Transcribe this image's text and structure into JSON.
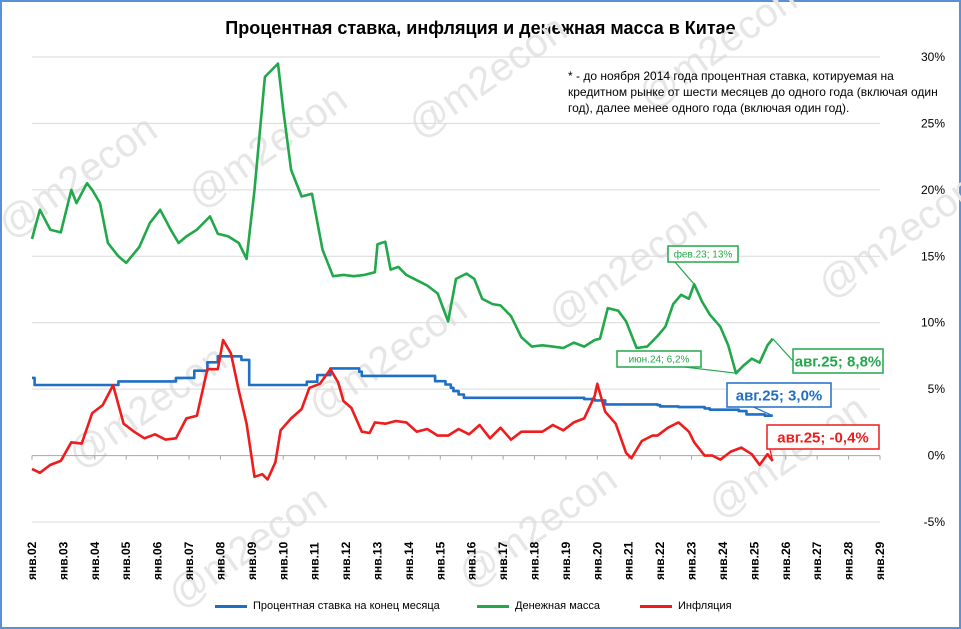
{
  "title": "Процентная ставка, инфляция и денежная масса в Китае",
  "note": "* - до ноября 2014 года процентная ставка, котируемая на кредитном рынке от шести месяцев до одного года (включая один год), далее менее одного года (включая один год).",
  "watermark": "@m2econ",
  "colors": {
    "rate": "#1f6fc5",
    "money": "#21a84a",
    "inflation": "#ee1c1c",
    "grid": "#d9d9d9"
  },
  "legend": {
    "rate": "Процентная ставка на конец месяца",
    "money": "Денежная масса",
    "inflation": "Инфляция"
  },
  "callouts": {
    "money_peak": "фев.23; 13%",
    "money_low": "июн.24; 6,2%",
    "money_last": "авг.25; 8,8%",
    "rate_last": "авг.25; 3,0%",
    "infl_last": "авг.25; -0,4%"
  },
  "chart_data": {
    "type": "line",
    "title": "Процентная ставка, инфляция и денежная масса в Китае",
    "xlabel": "",
    "ylabel": "",
    "ylim": [
      -5,
      30
    ],
    "y_ticks": [
      "30%",
      "25%",
      "20%",
      "15%",
      "10%",
      "5%",
      "0%",
      "-5%"
    ],
    "x_ticks": [
      "янв.02",
      "янв.03",
      "янв.04",
      "янв.05",
      "янв.06",
      "янв.07",
      "янв.08",
      "янв.09",
      "янв.10",
      "янв.11",
      "янв.12",
      "янв.13",
      "янв.14",
      "янв.15",
      "янв.16",
      "янв.17",
      "янв.18",
      "янв.19",
      "янв.20",
      "янв.21",
      "янв.22",
      "янв.23",
      "янв.24",
      "янв.25",
      "янв.26",
      "янв.27",
      "янв.28",
      "янв.29"
    ],
    "x_range": [
      "2002-01",
      "2029-01"
    ],
    "grid": true,
    "legend_position": "bottom",
    "series": [
      {
        "name": "Процентная ставка на конец месяца",
        "key": "rate",
        "x": [
          "2002-01",
          "2002-02",
          "2004-10",
          "2006-08",
          "2007-03",
          "2007-08",
          "2007-12",
          "2008-09",
          "2008-12",
          "2010-10",
          "2011-02",
          "2011-07",
          "2012-06",
          "2012-07",
          "2014-11",
          "2015-03",
          "2015-05",
          "2015-06",
          "2015-08",
          "2015-10",
          "2019-08",
          "2019-12",
          "2020-04",
          "2021-12",
          "2022-01",
          "2022-08",
          "2023-06",
          "2023-08",
          "2024-07",
          "2024-10",
          "2025-05",
          "2025-08"
        ],
        "values": [
          5.85,
          5.31,
          5.58,
          5.85,
          6.39,
          7.02,
          7.47,
          7.2,
          5.31,
          5.56,
          6.06,
          6.56,
          6.31,
          6.0,
          5.6,
          5.35,
          5.1,
          4.85,
          4.6,
          4.35,
          4.25,
          4.15,
          3.85,
          3.8,
          3.7,
          3.65,
          3.55,
          3.45,
          3.35,
          3.1,
          3.0,
          3.0
        ]
      },
      {
        "name": "Денежная масса",
        "key": "money",
        "x": [
          "2002-01",
          "2002-04",
          "2002-08",
          "2002-12",
          "2003-04",
          "2003-06",
          "2003-10",
          "2003-12",
          "2004-03",
          "2004-06",
          "2004-10",
          "2005-01",
          "2005-06",
          "2005-10",
          "2006-02",
          "2006-06",
          "2006-09",
          "2006-12",
          "2007-04",
          "2007-09",
          "2007-12",
          "2008-04",
          "2008-08",
          "2008-11",
          "2009-02",
          "2009-06",
          "2009-11",
          "2010-01",
          "2010-04",
          "2010-08",
          "2010-12",
          "2011-04",
          "2011-08",
          "2011-12",
          "2012-04",
          "2012-08",
          "2012-12",
          "2013-01",
          "2013-04",
          "2013-06",
          "2013-09",
          "2013-12",
          "2014-04",
          "2014-08",
          "2014-12",
          "2015-04",
          "2015-07",
          "2015-11",
          "2016-02",
          "2016-05",
          "2016-09",
          "2016-12",
          "2017-04",
          "2017-08",
          "2017-12",
          "2018-04",
          "2018-08",
          "2018-12",
          "2019-04",
          "2019-08",
          "2019-12",
          "2020-02",
          "2020-05",
          "2020-09",
          "2020-12",
          "2021-04",
          "2021-08",
          "2021-12",
          "2022-03",
          "2022-06",
          "2022-09",
          "2022-12",
          "2023-02",
          "2023-05",
          "2023-08",
          "2023-12",
          "2024-03",
          "2024-06",
          "2024-09",
          "2024-12",
          "2025-03",
          "2025-06",
          "2025-08"
        ],
        "values": [
          16.3,
          18.5,
          17.0,
          16.8,
          20.0,
          19.0,
          20.5,
          20.0,
          19.0,
          16.0,
          15.0,
          14.5,
          15.7,
          17.5,
          18.5,
          17.0,
          16.0,
          16.5,
          17.0,
          18.0,
          16.7,
          16.5,
          16.0,
          14.8,
          20.0,
          28.5,
          29.5,
          26.0,
          21.5,
          19.5,
          19.7,
          15.5,
          13.5,
          13.6,
          13.5,
          13.6,
          13.8,
          15.9,
          16.1,
          14.0,
          14.2,
          13.6,
          13.2,
          12.8,
          12.2,
          10.1,
          13.3,
          13.7,
          13.3,
          11.8,
          11.4,
          11.3,
          10.5,
          8.9,
          8.2,
          8.3,
          8.2,
          8.1,
          8.5,
          8.2,
          8.7,
          8.8,
          11.1,
          10.9,
          10.1,
          8.1,
          8.2,
          9.0,
          9.7,
          11.4,
          12.1,
          11.8,
          12.9,
          11.6,
          10.6,
          9.7,
          8.3,
          6.2,
          6.8,
          7.3,
          7.0,
          8.3,
          8.8
        ]
      },
      {
        "name": "Инфляция",
        "key": "inflation",
        "x": [
          "2002-01",
          "2002-04",
          "2002-08",
          "2002-12",
          "2003-04",
          "2003-08",
          "2003-12",
          "2004-04",
          "2004-08",
          "2004-12",
          "2005-04",
          "2005-08",
          "2005-12",
          "2006-04",
          "2006-08",
          "2006-12",
          "2007-04",
          "2007-08",
          "2007-12",
          "2008-02",
          "2008-05",
          "2008-08",
          "2008-11",
          "2009-02",
          "2009-05",
          "2009-07",
          "2009-10",
          "2009-12",
          "2010-04",
          "2010-08",
          "2010-11",
          "2011-03",
          "2011-07",
          "2011-10",
          "2011-12",
          "2012-03",
          "2012-07",
          "2012-10",
          "2012-12",
          "2013-04",
          "2013-08",
          "2013-12",
          "2014-04",
          "2014-08",
          "2014-12",
          "2015-04",
          "2015-08",
          "2015-12",
          "2016-04",
          "2016-08",
          "2016-12",
          "2017-04",
          "2017-08",
          "2017-12",
          "2018-04",
          "2018-08",
          "2018-12",
          "2019-04",
          "2019-08",
          "2019-12",
          "2020-01",
          "2020-04",
          "2020-08",
          "2020-12",
          "2021-02",
          "2021-06",
          "2021-10",
          "2021-12",
          "2022-04",
          "2022-08",
          "2022-12",
          "2023-02",
          "2023-06",
          "2023-09",
          "2023-12",
          "2024-04",
          "2024-08",
          "2024-12",
          "2025-03",
          "2025-06",
          "2025-08"
        ],
        "values": [
          -1.0,
          -1.3,
          -0.7,
          -0.4,
          1.0,
          0.9,
          3.2,
          3.8,
          5.3,
          2.4,
          1.8,
          1.3,
          1.6,
          1.2,
          1.3,
          2.8,
          3.0,
          6.5,
          6.5,
          8.7,
          7.7,
          4.9,
          2.4,
          -1.6,
          -1.4,
          -1.8,
          -0.5,
          1.9,
          2.8,
          3.5,
          5.1,
          5.4,
          6.5,
          5.5,
          4.1,
          3.6,
          1.8,
          1.7,
          2.5,
          2.4,
          2.6,
          2.5,
          1.8,
          2.0,
          1.5,
          1.5,
          2.0,
          1.6,
          2.3,
          1.3,
          2.1,
          1.2,
          1.8,
          1.8,
          1.8,
          2.3,
          1.9,
          2.5,
          2.8,
          4.5,
          5.4,
          3.3,
          2.4,
          0.2,
          -0.2,
          1.1,
          1.5,
          1.5,
          2.1,
          2.5,
          1.8,
          1.0,
          0.0,
          0.0,
          -0.3,
          0.3,
          0.6,
          0.1,
          -0.7,
          0.1,
          -0.4
        ]
      }
    ]
  }
}
